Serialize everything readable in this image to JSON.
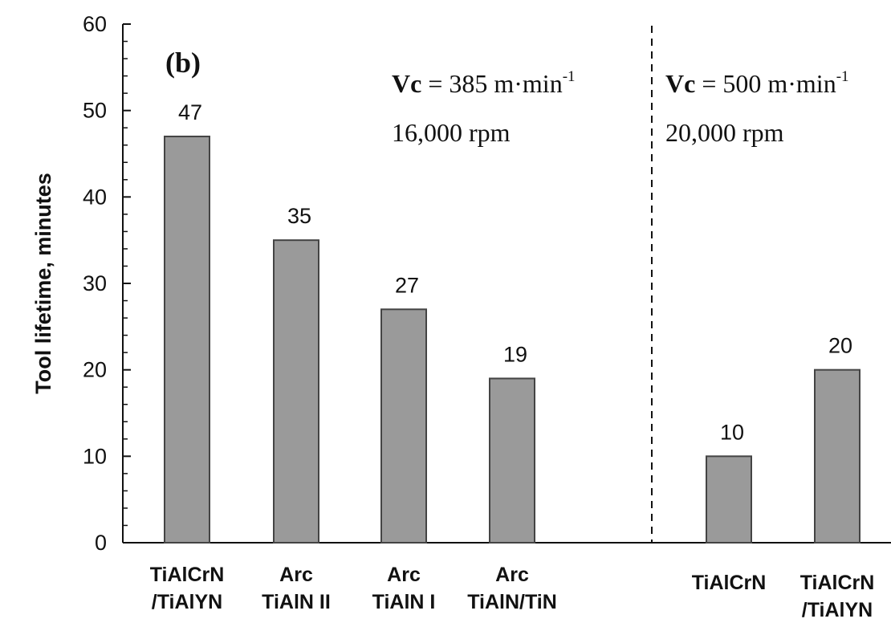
{
  "chart_data": {
    "type": "bar",
    "title": "",
    "panel_label": "(b)",
    "xlabel": "",
    "ylabel": "Tool lifetime, minutes",
    "ylim": [
      0,
      60
    ],
    "yticks": [
      "0",
      "10",
      "20",
      "30",
      "40",
      "50",
      "60"
    ],
    "categories": [
      [
        "TiAlCrN",
        "/TiAlYN"
      ],
      [
        "Arc",
        "TiAlN II"
      ],
      [
        "Arc",
        "TiAlN I"
      ],
      [
        "Arc",
        "TiAlN/TiN"
      ],
      [
        "TiAlCrN"
      ],
      [
        "TiAlCrN",
        "/TiAlYN"
      ]
    ],
    "values": [
      47,
      35,
      27,
      19,
      10,
      20
    ],
    "data_labels": [
      "47",
      "35",
      "27",
      "19",
      "10",
      "20"
    ],
    "groups": [
      {
        "cutting_speed_symbol": "Vc",
        "cutting_speed_value": "= 385 m·min",
        "cutting_speed_exp": "-1",
        "spindle_speed": "16,000 rpm",
        "bars": [
          0,
          1,
          2,
          3
        ]
      },
      {
        "cutting_speed_symbol": "Vc",
        "cutting_speed_value": "= 500 m·min",
        "cutting_speed_exp": "-1",
        "spindle_speed": "20,000 rpm",
        "bars": [
          4,
          5
        ]
      }
    ],
    "separator": "dashed vertical line between groups",
    "colors": {
      "bar_fill": "#9a9a9a",
      "bar_stroke": "#444444",
      "axis": "#111111"
    },
    "grid": false
  }
}
